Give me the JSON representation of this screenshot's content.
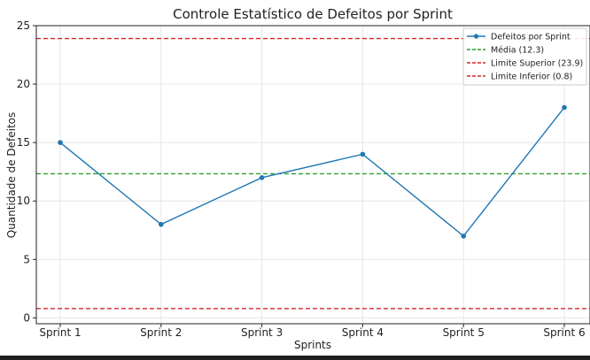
{
  "chart_data": {
    "type": "line",
    "title": "Controle Estatístico de Defeitos por Sprint",
    "xlabel": "Sprints",
    "ylabel": "Quantidade de Defeitos",
    "categories": [
      "Sprint 1",
      "Sprint 2",
      "Sprint 3",
      "Sprint 4",
      "Sprint 5",
      "Sprint 6"
    ],
    "series": [
      {
        "name": "Defeitos por Sprint",
        "values": [
          15,
          8,
          12,
          14,
          7,
          18
        ],
        "color": "#1f77b4"
      }
    ],
    "reference_lines": [
      {
        "name": "Média (12.3)",
        "value": 12.33,
        "color": "#2ca02c"
      },
      {
        "name": "Limite Superior (23.9)",
        "value": 23.9,
        "color": "#d62728"
      },
      {
        "name": "Limite Inferior (0.8)",
        "value": 0.8,
        "color": "#d62728"
      }
    ],
    "ylim": [
      -0.5,
      25
    ],
    "yticks": [
      0,
      5,
      10,
      15,
      20,
      25
    ],
    "grid": true,
    "legend_position": "top-right"
  }
}
